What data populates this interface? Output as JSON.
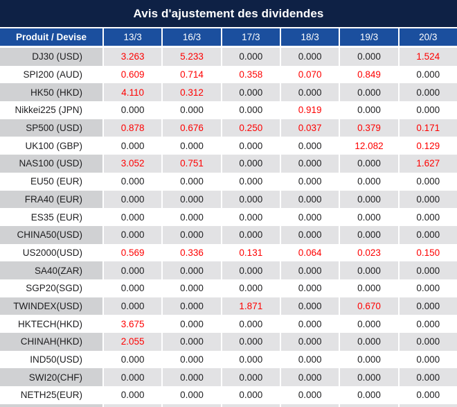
{
  "title": "Avis d'ajustement des dividendes",
  "colors": {
    "title_bg": "#0e2145",
    "header_bg": "#1b4f9e",
    "separator": "#ffffff",
    "alt_row_label_bg": "#d0d1d3",
    "alt_row_value_bg": "#e2e2e4",
    "row_bg": "#ffffff",
    "value_nonzero_color": "#fe0000",
    "value_zero_color": "#1d1d1f",
    "header_text": "#ffffff"
  },
  "chart_data": {
    "type": "table",
    "title": "Avis d'ajustement des dividendes",
    "columns": [
      "Produit / Devise",
      "13/3",
      "16/3",
      "17/3",
      "18/3",
      "19/3",
      "20/3"
    ],
    "rows": [
      {
        "product": "DJ30 (USD)",
        "values": [
          "3.263",
          "5.233",
          "0.000",
          "0.000",
          "0.000",
          "1.524"
        ]
      },
      {
        "product": "SPI200 (AUD)",
        "values": [
          "0.609",
          "0.714",
          "0.358",
          "0.070",
          "0.849",
          "0.000"
        ]
      },
      {
        "product": "HK50 (HKD)",
        "values": [
          "4.110",
          "0.312",
          "0.000",
          "0.000",
          "0.000",
          "0.000"
        ]
      },
      {
        "product": "Nikkei225 (JPN)",
        "values": [
          "0.000",
          "0.000",
          "0.000",
          "0.919",
          "0.000",
          "0.000"
        ]
      },
      {
        "product": "SP500 (USD)",
        "values": [
          "0.878",
          "0.676",
          "0.250",
          "0.037",
          "0.379",
          "0.171"
        ]
      },
      {
        "product": "UK100 (GBP)",
        "values": [
          "0.000",
          "0.000",
          "0.000",
          "0.000",
          "12.082",
          "0.129"
        ]
      },
      {
        "product": "NAS100 (USD)",
        "values": [
          "3.052",
          "0.751",
          "0.000",
          "0.000",
          "0.000",
          "1.627"
        ]
      },
      {
        "product": "EU50 (EUR)",
        "values": [
          "0.000",
          "0.000",
          "0.000",
          "0.000",
          "0.000",
          "0.000"
        ]
      },
      {
        "product": "FRA40 (EUR)",
        "values": [
          "0.000",
          "0.000",
          "0.000",
          "0.000",
          "0.000",
          "0.000"
        ]
      },
      {
        "product": "ES35 (EUR)",
        "values": [
          "0.000",
          "0.000",
          "0.000",
          "0.000",
          "0.000",
          "0.000"
        ]
      },
      {
        "product": "CHINA50(USD)",
        "values": [
          "0.000",
          "0.000",
          "0.000",
          "0.000",
          "0.000",
          "0.000"
        ]
      },
      {
        "product": "US2000(USD)",
        "values": [
          "0.569",
          "0.336",
          "0.131",
          "0.064",
          "0.023",
          "0.150"
        ]
      },
      {
        "product": "SA40(ZAR)",
        "values": [
          "0.000",
          "0.000",
          "0.000",
          "0.000",
          "0.000",
          "0.000"
        ]
      },
      {
        "product": "SGP20(SGD)",
        "values": [
          "0.000",
          "0.000",
          "0.000",
          "0.000",
          "0.000",
          "0.000"
        ]
      },
      {
        "product": "TWINDEX(USD)",
        "values": [
          "0.000",
          "0.000",
          "1.871",
          "0.000",
          "0.670",
          "0.000"
        ]
      },
      {
        "product": "HKTECH(HKD)",
        "values": [
          "3.675",
          "0.000",
          "0.000",
          "0.000",
          "0.000",
          "0.000"
        ]
      },
      {
        "product": "CHINAH(HKD)",
        "values": [
          "2.055",
          "0.000",
          "0.000",
          "0.000",
          "0.000",
          "0.000"
        ]
      },
      {
        "product": "IND50(USD)",
        "values": [
          "0.000",
          "0.000",
          "0.000",
          "0.000",
          "0.000",
          "0.000"
        ]
      },
      {
        "product": "SWI20(CHF)",
        "values": [
          "0.000",
          "0.000",
          "0.000",
          "0.000",
          "0.000",
          "0.000"
        ]
      },
      {
        "product": "NETH25(EUR)",
        "values": [
          "0.000",
          "0.000",
          "0.000",
          "0.000",
          "0.000",
          "0.000"
        ]
      }
    ]
  }
}
